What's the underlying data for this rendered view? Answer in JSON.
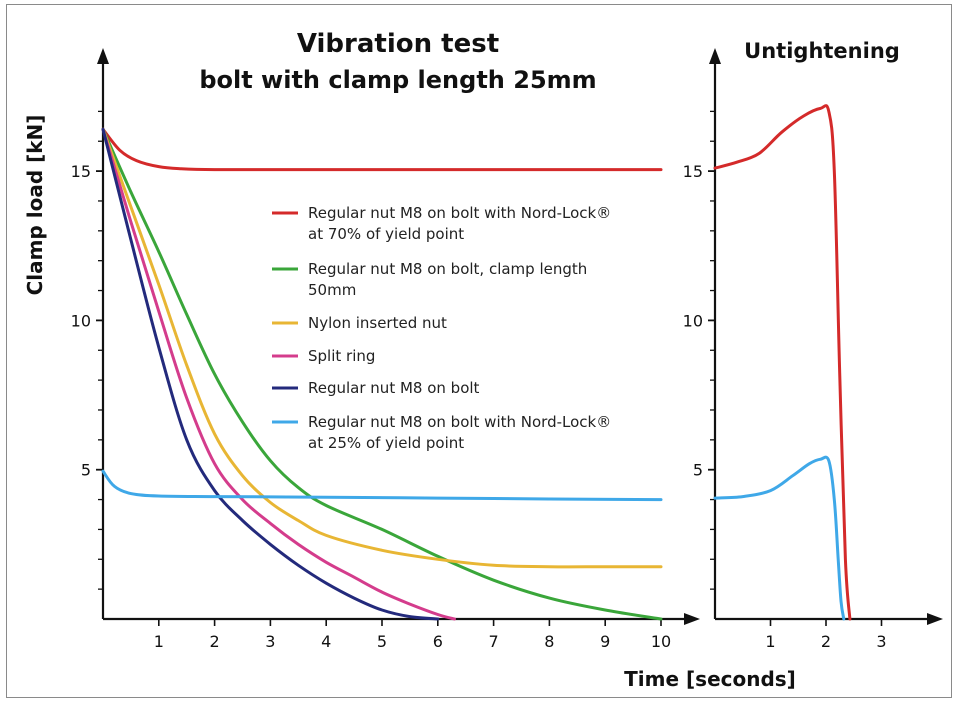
{
  "chart_data": [
    {
      "type": "line",
      "title": "Vibration test",
      "subtitle": "bolt with clamp length 25mm",
      "xlabel": "Time [seconds]",
      "ylabel": "Clamp load [kN]",
      "xlim": [
        0,
        10.4
      ],
      "ylim": [
        0,
        18
      ],
      "x_ticks": [
        "1",
        "2",
        "3",
        "4",
        "5",
        "6",
        "7",
        "8",
        "9",
        "10"
      ],
      "y_ticks": [
        "5",
        "10",
        "15"
      ],
      "grid": false,
      "legend_position": "center",
      "series": [
        {
          "name": "Regular nut M8 on bolt with Nord-Lock® at 70% of yield point",
          "legend_lines": [
            "Regular nut M8 on bolt with Nord-Lock®",
            "at 70% of yield point"
          ],
          "color": "#d42a2a",
          "x": [
            0,
            0.3,
            0.6,
            1.0,
            1.4,
            2.0,
            3.0,
            5.0,
            7.0,
            10.0
          ],
          "y": [
            16.4,
            15.7,
            15.35,
            15.15,
            15.08,
            15.05,
            15.05,
            15.05,
            15.05,
            15.05
          ]
        },
        {
          "name": "Regular nut M8 on bolt, clamp length 50mm",
          "legend_lines": [
            "Regular nut M8 on bolt, clamp length",
            "50mm"
          ],
          "color": "#3aa63a",
          "x": [
            0,
            0.5,
            1.0,
            1.5,
            2.0,
            2.5,
            3.0,
            3.5,
            4.0,
            5.0,
            6.0,
            7.0,
            8.0,
            9.0,
            10.0
          ],
          "y": [
            16.4,
            14.3,
            12.3,
            10.2,
            8.2,
            6.6,
            5.3,
            4.4,
            3.8,
            3.0,
            2.1,
            1.3,
            0.7,
            0.3,
            0.0
          ]
        },
        {
          "name": "Nylon inserted nut",
          "legend_lines": [
            "Nylon inserted nut"
          ],
          "color": "#e8b634",
          "x": [
            0,
            0.5,
            1.0,
            1.5,
            2.0,
            2.5,
            3.0,
            3.5,
            4.0,
            5.0,
            6.0,
            7.0,
            8.0,
            9.0,
            10.0
          ],
          "y": [
            16.4,
            13.8,
            11.2,
            8.5,
            6.2,
            4.8,
            3.9,
            3.3,
            2.8,
            2.3,
            2.0,
            1.8,
            1.75,
            1.75,
            1.75
          ]
        },
        {
          "name": "Split ring",
          "legend_lines": [
            "Split ring"
          ],
          "color": "#d43c8c",
          "x": [
            0,
            0.5,
            1.0,
            1.5,
            2.0,
            2.5,
            3.0,
            3.5,
            4.0,
            4.5,
            5.0,
            5.5,
            6.0,
            6.3
          ],
          "y": [
            16.4,
            13.3,
            10.3,
            7.4,
            5.2,
            4.0,
            3.2,
            2.5,
            1.9,
            1.4,
            0.9,
            0.5,
            0.15,
            0.0
          ]
        },
        {
          "name": "Regular nut M8 on bolt",
          "legend_lines": [
            "Regular nut M8 on bolt"
          ],
          "color": "#232a7c",
          "x": [
            0,
            0.5,
            1.0,
            1.5,
            2.0,
            2.5,
            3.0,
            3.5,
            4.0,
            4.5,
            5.0,
            5.5,
            6.0
          ],
          "y": [
            16.4,
            12.7,
            9.1,
            6.0,
            4.3,
            3.3,
            2.5,
            1.8,
            1.2,
            0.7,
            0.3,
            0.08,
            0.0
          ]
        },
        {
          "name": "Regular nut M8 on bolt with Nord-Lock® at 25% of yield point",
          "legend_lines": [
            "Regular nut M8 on bolt with Nord-Lock®",
            "at 25% of yield point"
          ],
          "color": "#3fa8e8",
          "x": [
            0,
            0.2,
            0.5,
            1.0,
            2.0,
            4.0,
            6.0,
            8.0,
            10.0
          ],
          "y": [
            4.95,
            4.45,
            4.2,
            4.12,
            4.1,
            4.08,
            4.05,
            4.02,
            4.0
          ]
        }
      ]
    },
    {
      "type": "line",
      "title": "Untightening",
      "xlabel": "",
      "ylabel": "",
      "xlim": [
        0,
        3.9
      ],
      "ylim": [
        0,
        18
      ],
      "x_ticks": [
        "1",
        "2",
        "3"
      ],
      "y_ticks": [
        "5",
        "10",
        "15"
      ],
      "grid": false,
      "series": [
        {
          "color": "#d42a2a",
          "x": [
            0,
            0.4,
            0.8,
            1.2,
            1.6,
            1.9,
            2.05,
            2.15,
            2.25,
            2.35,
            2.43
          ],
          "y": [
            15.1,
            15.3,
            15.6,
            16.3,
            16.85,
            17.1,
            17.0,
            15.0,
            8.0,
            2.0,
            0.0
          ]
        },
        {
          "color": "#3fa8e8",
          "x": [
            0,
            0.5,
            1.0,
            1.4,
            1.7,
            1.9,
            2.05,
            2.15,
            2.22,
            2.27,
            2.32
          ],
          "y": [
            4.05,
            4.1,
            4.3,
            4.8,
            5.2,
            5.35,
            5.3,
            4.0,
            2.0,
            0.6,
            0.0
          ]
        }
      ]
    }
  ]
}
